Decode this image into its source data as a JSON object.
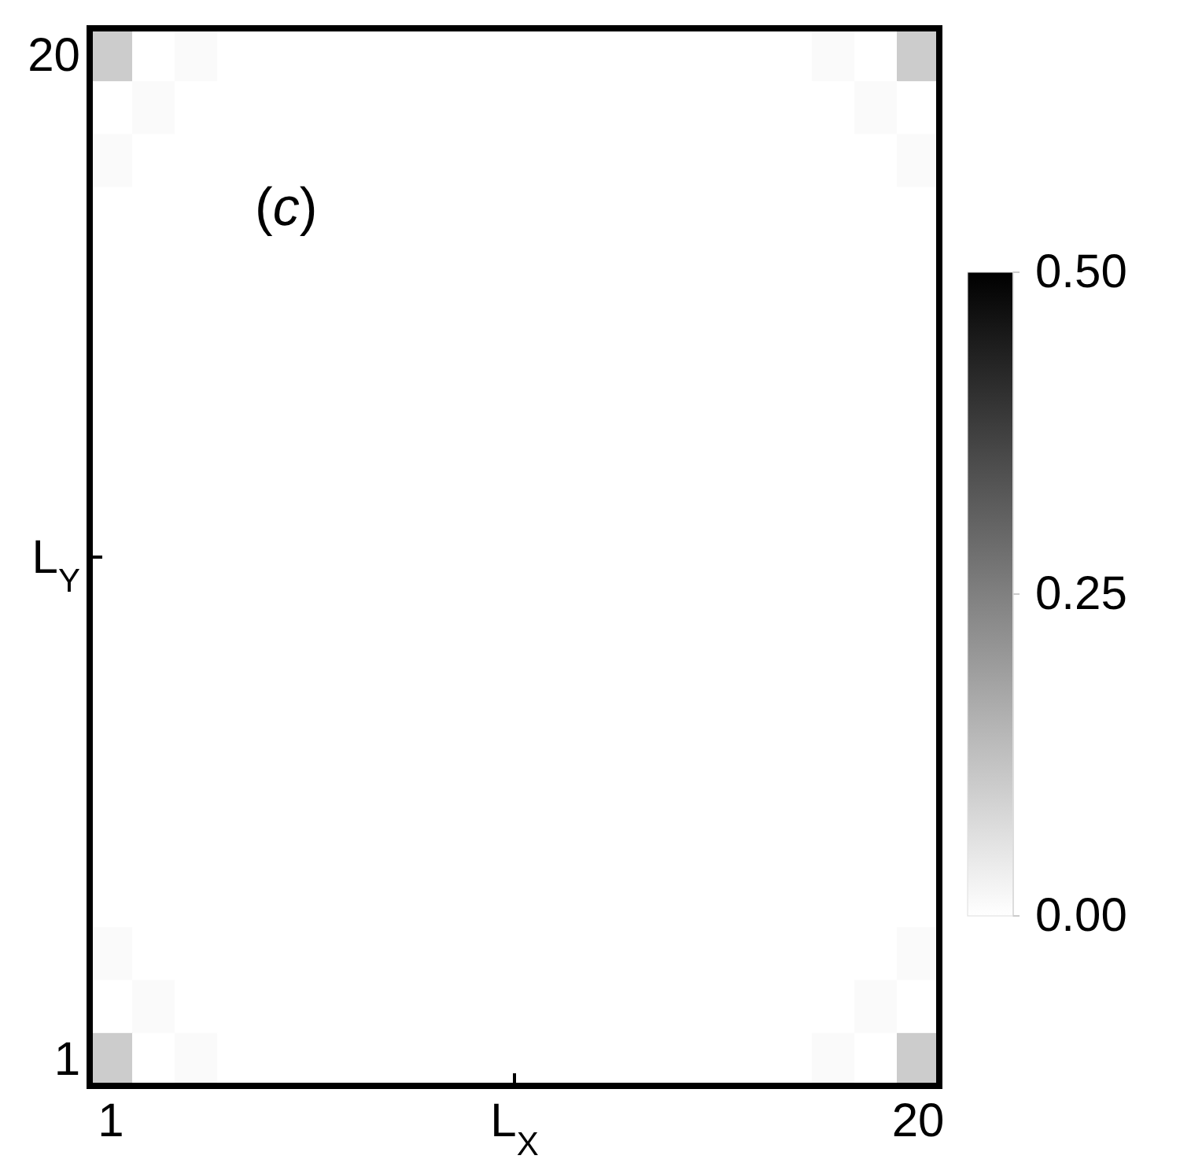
{
  "chart_data": {
    "type": "heatmap",
    "xlabel": "L$_{X}$",
    "ylabel": "L$_{Y}$",
    "annotations": [
      "(c)"
    ],
    "categories": [
      "1",
      null,
      null,
      null,
      null,
      null,
      null,
      null,
      null,
      null,
      null,
      null,
      null,
      null,
      null,
      null,
      null,
      null,
      null,
      "20"
    ],
    "y_categories": [
      "20",
      null,
      null,
      null,
      null,
      null,
      null,
      null,
      null,
      null,
      null,
      null,
      null,
      null,
      null,
      null,
      null,
      null,
      null,
      "1"
    ],
    "cells": [
      [
        0.1,
        0,
        0.01,
        0,
        0,
        0,
        0,
        0,
        0,
        0,
        0,
        0,
        0,
        0,
        0,
        0,
        0,
        0.01,
        0,
        0.1
      ],
      [
        0,
        0.01,
        0,
        0,
        0,
        0,
        0,
        0,
        0,
        0,
        0,
        0,
        0,
        0,
        0,
        0,
        0,
        0,
        0.01,
        0
      ],
      [
        0.01,
        0,
        0,
        0,
        0,
        0,
        0,
        0,
        0,
        0,
        0,
        0,
        0,
        0,
        0,
        0,
        0,
        0,
        0,
        0.01
      ],
      [
        0,
        0,
        0,
        0,
        0,
        0,
        0,
        0,
        0,
        0,
        0,
        0,
        0,
        0,
        0,
        0,
        0,
        0,
        0,
        0
      ],
      [
        0,
        0,
        0,
        0,
        0,
        0,
        0,
        0,
        0,
        0,
        0,
        0,
        0,
        0,
        0,
        0,
        0,
        0,
        0,
        0
      ],
      [
        0,
        0,
        0,
        0,
        0,
        0,
        0,
        0,
        0,
        0,
        0,
        0,
        0,
        0,
        0,
        0,
        0,
        0,
        0,
        0
      ],
      [
        0,
        0,
        0,
        0,
        0,
        0,
        0,
        0,
        0,
        0,
        0,
        0,
        0,
        0,
        0,
        0,
        0,
        0,
        0,
        0
      ],
      [
        0,
        0,
        0,
        0,
        0,
        0,
        0,
        0,
        0,
        0,
        0,
        0,
        0,
        0,
        0,
        0,
        0,
        0,
        0,
        0
      ],
      [
        0,
        0,
        0,
        0,
        0,
        0,
        0,
        0,
        0,
        0,
        0,
        0,
        0,
        0,
        0,
        0,
        0,
        0,
        0,
        0
      ],
      [
        0,
        0,
        0,
        0,
        0,
        0,
        0,
        0,
        0,
        0,
        0,
        0,
        0,
        0,
        0,
        0,
        0,
        0,
        0,
        0
      ],
      [
        0,
        0,
        0,
        0,
        0,
        0,
        0,
        0,
        0,
        0,
        0,
        0,
        0,
        0,
        0,
        0,
        0,
        0,
        0,
        0
      ],
      [
        0,
        0,
        0,
        0,
        0,
        0,
        0,
        0,
        0,
        0,
        0,
        0,
        0,
        0,
        0,
        0,
        0,
        0,
        0,
        0
      ],
      [
        0,
        0,
        0,
        0,
        0,
        0,
        0,
        0,
        0,
        0,
        0,
        0,
        0,
        0,
        0,
        0,
        0,
        0,
        0,
        0
      ],
      [
        0,
        0,
        0,
        0,
        0,
        0,
        0,
        0,
        0,
        0,
        0,
        0,
        0,
        0,
        0,
        0,
        0,
        0,
        0,
        0
      ],
      [
        0,
        0,
        0,
        0,
        0,
        0,
        0,
        0,
        0,
        0,
        0,
        0,
        0,
        0,
        0,
        0,
        0,
        0,
        0,
        0
      ],
      [
        0,
        0,
        0,
        0,
        0,
        0,
        0,
        0,
        0,
        0,
        0,
        0,
        0,
        0,
        0,
        0,
        0,
        0,
        0,
        0
      ],
      [
        0,
        0,
        0,
        0,
        0,
        0,
        0,
        0,
        0,
        0,
        0,
        0,
        0,
        0,
        0,
        0,
        0,
        0,
        0,
        0
      ],
      [
        0.01,
        0,
        0,
        0,
        0,
        0,
        0,
        0,
        0,
        0,
        0,
        0,
        0,
        0,
        0,
        0,
        0,
        0,
        0,
        0.01
      ],
      [
        0,
        0.01,
        0,
        0,
        0,
        0,
        0,
        0,
        0,
        0,
        0,
        0,
        0,
        0,
        0,
        0,
        0,
        0,
        0.01,
        0
      ],
      [
        0.1,
        0,
        0.01,
        0,
        0,
        0,
        0,
        0,
        0,
        0,
        0,
        0,
        0,
        0,
        0,
        0,
        0,
        0.01,
        0,
        0.1
      ]
    ],
    "clim": [
      0,
      0.5
    ],
    "cticks": [
      {
        "value": 0,
        "label": "0.00"
      },
      {
        "value": 0.25,
        "label": "0.25"
      },
      {
        "value": 0.5,
        "label": "0.50"
      }
    ]
  }
}
